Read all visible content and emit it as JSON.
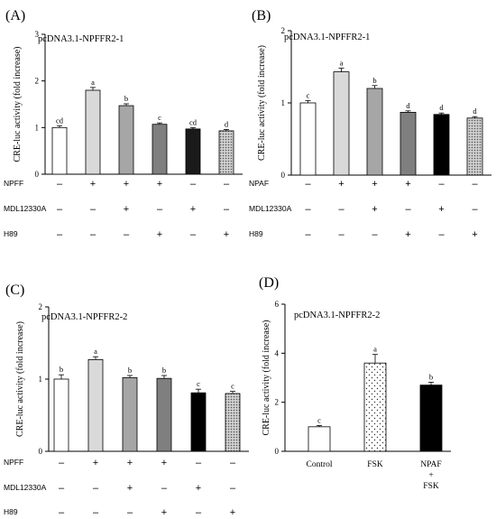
{
  "chart_data": [
    {
      "panel": "(A)",
      "type": "bar",
      "construct": "pcDNA3.1-NPFFR2-1",
      "ylabel": "CRE-luc activity (fold increase)",
      "ylim": [
        0,
        3
      ],
      "yticks": [
        "0",
        "1",
        "2",
        "3"
      ],
      "values": [
        1.0,
        1.8,
        1.47,
        1.07,
        0.97,
        0.93
      ],
      "errors": [
        0.04,
        0.06,
        0.04,
        0.03,
        0.03,
        0.03
      ],
      "letters": [
        "cd",
        "a",
        "b",
        "c",
        "cd",
        "d"
      ],
      "fills": [
        "#ffffff",
        "#d9d9d9",
        "#a6a6a6",
        "#7f7f7f",
        "#1a1a1a",
        "dotted"
      ],
      "treatments": [
        {
          "label": "NPFF",
          "symbols": [
            "–",
            "+",
            "+",
            "+",
            "–",
            "–"
          ]
        },
        {
          "label": "MDL12330A",
          "symbols": [
            "–",
            "–",
            "+",
            "–",
            "+",
            "–"
          ]
        },
        {
          "label": "H89",
          "symbols": [
            "–",
            "–",
            "–",
            "+",
            "–",
            "+"
          ]
        }
      ]
    },
    {
      "panel": "(B)",
      "type": "bar",
      "construct": "pcDNA3.1-NPFFR2-1",
      "ylabel": "CRE-luc activity (fold increase)",
      "ylim": [
        0,
        2
      ],
      "yticks": [
        "0",
        "1",
        "2"
      ],
      "values": [
        1.0,
        1.43,
        1.2,
        0.87,
        0.84,
        0.79
      ],
      "errors": [
        0.03,
        0.05,
        0.04,
        0.02,
        0.02,
        0.02
      ],
      "letters": [
        "c",
        "a",
        "b",
        "d",
        "d",
        "d"
      ],
      "fills": [
        "#ffffff",
        "#d9d9d9",
        "#a6a6a6",
        "#7f7f7f",
        "#000000",
        "dotted"
      ],
      "treatments": [
        {
          "label": "NPAF",
          "symbols": [
            "–",
            "+",
            "+",
            "+",
            "–",
            "–"
          ]
        },
        {
          "label": "MDL12330A",
          "symbols": [
            "–",
            "–",
            "+",
            "–",
            "+",
            "–"
          ]
        },
        {
          "label": "H89",
          "symbols": [
            "–",
            "–",
            "–",
            "+",
            "–",
            "+"
          ]
        }
      ]
    },
    {
      "panel": "(C)",
      "type": "bar",
      "construct": "pcDNA3.1-NPFFR2-2",
      "ylabel": "CRE-luc activity (fold increase)",
      "ylim": [
        0,
        2
      ],
      "yticks": [
        "0",
        "1",
        "2"
      ],
      "values": [
        1.0,
        1.27,
        1.02,
        1.01,
        0.81,
        0.8
      ],
      "errors": [
        0.06,
        0.04,
        0.03,
        0.04,
        0.05,
        0.03
      ],
      "letters": [
        "b",
        "a",
        "b",
        "b",
        "c",
        "c"
      ],
      "fills": [
        "#ffffff",
        "#d9d9d9",
        "#a6a6a6",
        "#7f7f7f",
        "#000000",
        "dotted"
      ],
      "treatments": [
        {
          "label": "NPFF",
          "symbols": [
            "–",
            "+",
            "+",
            "+",
            "–",
            "–"
          ]
        },
        {
          "label": "MDL12330A",
          "symbols": [
            "–",
            "–",
            "+",
            "–",
            "+",
            "–"
          ]
        },
        {
          "label": "H89",
          "symbols": [
            "–",
            "–",
            "–",
            "+",
            "–",
            "+"
          ]
        }
      ]
    },
    {
      "panel": "(D)",
      "type": "bar",
      "construct": "pcDNA3.1-NPFFR2-2",
      "ylabel": "CRE-luc activity (fold increase)",
      "ylim": [
        0,
        6
      ],
      "yticks": [
        "0",
        "2",
        "4",
        "6"
      ],
      "categories": [
        [
          "Control"
        ],
        [
          "FSK"
        ],
        [
          "NPAF",
          "+",
          "FSK"
        ]
      ],
      "values": [
        1.0,
        3.6,
        2.7
      ],
      "errors": [
        0.05,
        0.35,
        0.12
      ],
      "letters": [
        "c",
        "a",
        "b"
      ],
      "fills": [
        "#ffffff",
        "dotted-sparse",
        "#000000"
      ]
    }
  ]
}
